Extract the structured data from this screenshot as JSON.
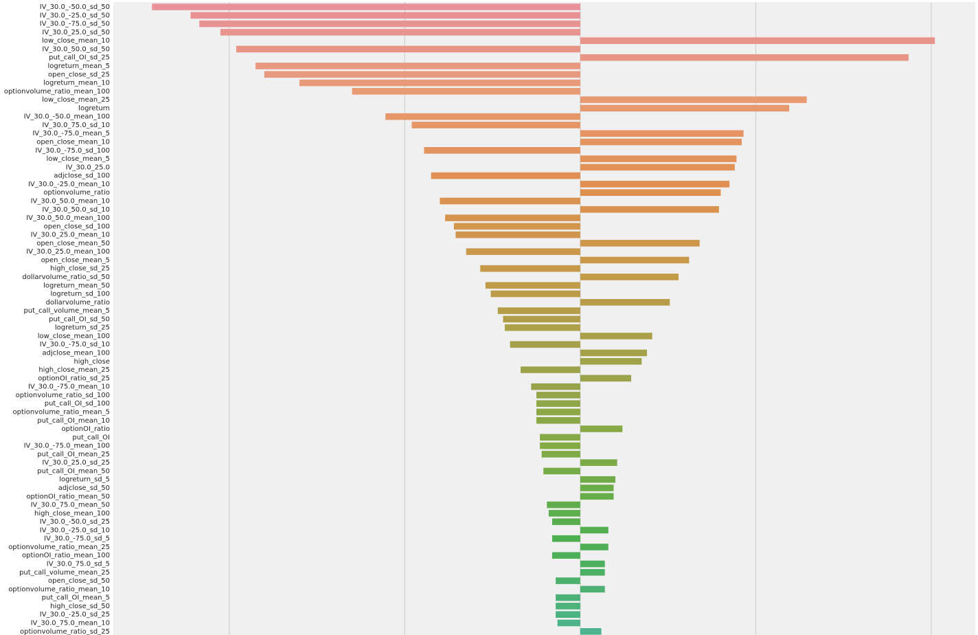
{
  "chart_data": {
    "type": "barh",
    "categories": [
      "IV_30.0_-50.0_sd_50",
      "IV_30.0_-25.0_sd_50",
      "IV_30.0_-75.0_sd_50",
      "IV_30.0_25.0_sd_50",
      "low_close_mean_10",
      "IV_30.0_50.0_sd_50",
      "put_call_OI_sd_25",
      "logreturn_mean_5",
      "open_close_sd_25",
      "logreturn_mean_10",
      "optionvolume_ratio_mean_100",
      "low_close_mean_25",
      "logreturn",
      "IV_30.0_-50.0_mean_100",
      "IV_30.0_75.0_sd_10",
      "IV_30.0_-75.0_mean_5",
      "open_close_mean_10",
      "IV_30.0_-75.0_sd_100",
      "low_close_mean_5",
      "IV_30.0_25.0",
      "adjclose_sd_100",
      "IV_30.0_-25.0_mean_10",
      "optionvolume_ratio",
      "IV_30.0_50.0_mean_10",
      "IV_30.0_50.0_sd_10",
      "IV_30.0_50.0_mean_100",
      "open_close_sd_100",
      "IV_30.0_25.0_mean_10",
      "open_close_mean_50",
      "IV_30.0_25.0_mean_100",
      "open_close_mean_5",
      "high_close_sd_25",
      "dollarvolume_ratio_sd_50",
      "logreturn_mean_50",
      "logreturn_sd_100",
      "dollarvolume_ratio",
      "put_call_volume_mean_5",
      "put_call_OI_sd_50",
      "logreturn_sd_25",
      "low_close_mean_100",
      "IV_30.0_-75.0_sd_10",
      "adjclose_mean_100",
      "high_close",
      "high_close_mean_25",
      "optionOI_ratio_sd_25",
      "IV_30.0_-75.0_mean_10",
      "optionvolume_ratio_sd_100",
      "put_call_OI_sd_100",
      "optionvolume_ratio_mean_5",
      "put_call_OI_mean_10",
      "optionOI_ratio",
      "put_call_OI",
      "IV_30.0_-75.0_mean_100",
      "put_call_OI_mean_25",
      "IV_30.0_25.0_sd_25",
      "put_call_OI_mean_50",
      "logreturn_sd_5",
      "adjclose_sd_50",
      "optionOI_ratio_mean_50",
      "IV_30.0_75.0_mean_50",
      "high_close_mean_100",
      "IV_30.0_-50.0_sd_25",
      "IV_30.0_-25.0_sd_10",
      "IV_30.0_-75.0_sd_5",
      "optionvolume_ratio_mean_25",
      "optionOI_ratio_mean_100",
      "IV_30.0_75.0_sd_5",
      "put_call_volume_mean_25",
      "open_close_sd_50",
      "optionvolume_ratio_mean_10",
      "put_call_OI_mean_5",
      "high_close_sd_50",
      "IV_30.0_-25.0_sd_25",
      "IV_30.0_75.0_mean_10",
      "optionvolume_ratio_sd_25"
    ],
    "values": [
      -2.44,
      -2.22,
      -2.17,
      -2.05,
      2.02,
      -1.96,
      1.87,
      -1.85,
      -1.8,
      -1.6,
      -1.3,
      1.29,
      1.19,
      -1.11,
      -0.96,
      0.93,
      0.92,
      -0.89,
      0.89,
      0.88,
      -0.85,
      0.85,
      0.8,
      -0.8,
      0.79,
      -0.77,
      -0.72,
      -0.71,
      0.68,
      -0.65,
      0.62,
      -0.57,
      0.56,
      -0.54,
      -0.51,
      0.51,
      -0.47,
      -0.44,
      -0.43,
      0.41,
      -0.4,
      0.38,
      0.35,
      -0.34,
      0.29,
      -0.28,
      -0.25,
      -0.25,
      -0.25,
      -0.25,
      0.24,
      -0.23,
      -0.23,
      -0.22,
      0.21,
      -0.21,
      0.2,
      0.19,
      0.19,
      -0.19,
      -0.18,
      -0.16,
      0.16,
      -0.16,
      0.16,
      -0.16,
      0.14,
      0.14,
      -0.14,
      0.14,
      -0.14,
      -0.14,
      -0.14,
      -0.13,
      0.12
    ],
    "palette": [
      "#e8919a",
      "#e89a72",
      "#e08f50",
      "#c49a48",
      "#9fa24a",
      "#80ab45",
      "#4caf50",
      "#4cb38e"
    ],
    "xlim": [
      -2.66,
      2.25
    ],
    "xticks": [
      -2,
      -1,
      0,
      1,
      2
    ],
    "grid": true,
    "tick_labels": false
  }
}
